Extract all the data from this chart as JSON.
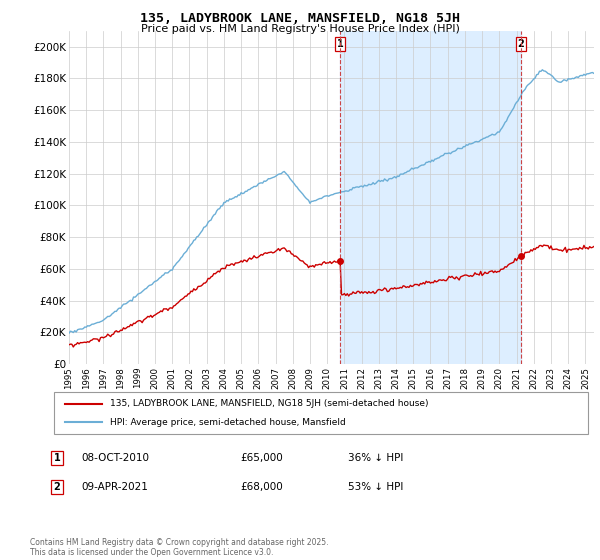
{
  "title": "135, LADYBROOK LANE, MANSFIELD, NG18 5JH",
  "subtitle": "Price paid vs. HM Land Registry's House Price Index (HPI)",
  "ylim": [
    0,
    210000
  ],
  "yticks": [
    0,
    20000,
    40000,
    60000,
    80000,
    100000,
    120000,
    140000,
    160000,
    180000,
    200000
  ],
  "ytick_labels": [
    "£0",
    "£20K",
    "£40K",
    "£60K",
    "£80K",
    "£100K",
    "£120K",
    "£140K",
    "£160K",
    "£180K",
    "£200K"
  ],
  "hpi_color": "#6baed6",
  "price_color": "#cc0000",
  "vline_color": "#cc4444",
  "shade_color": "#ddeeff",
  "t_sale1": 2010.75,
  "t_sale2": 2021.25,
  "marker1_price": 65000,
  "marker2_price": 68000,
  "legend_line1": "135, LADYBROOK LANE, MANSFIELD, NG18 5JH (semi-detached house)",
  "legend_line2": "HPI: Average price, semi-detached house, Mansfield",
  "row1_label": "1",
  "row1_date": "08-OCT-2010",
  "row1_price": "£65,000",
  "row1_pct": "36% ↓ HPI",
  "row2_label": "2",
  "row2_date": "09-APR-2021",
  "row2_price": "£68,000",
  "row2_pct": "53% ↓ HPI",
  "footer": "Contains HM Land Registry data © Crown copyright and database right 2025.\nThis data is licensed under the Open Government Licence v3.0.",
  "background_color": "#ffffff",
  "grid_color": "#cccccc",
  "xlim_left": 1995,
  "xlim_right": 2025.5
}
